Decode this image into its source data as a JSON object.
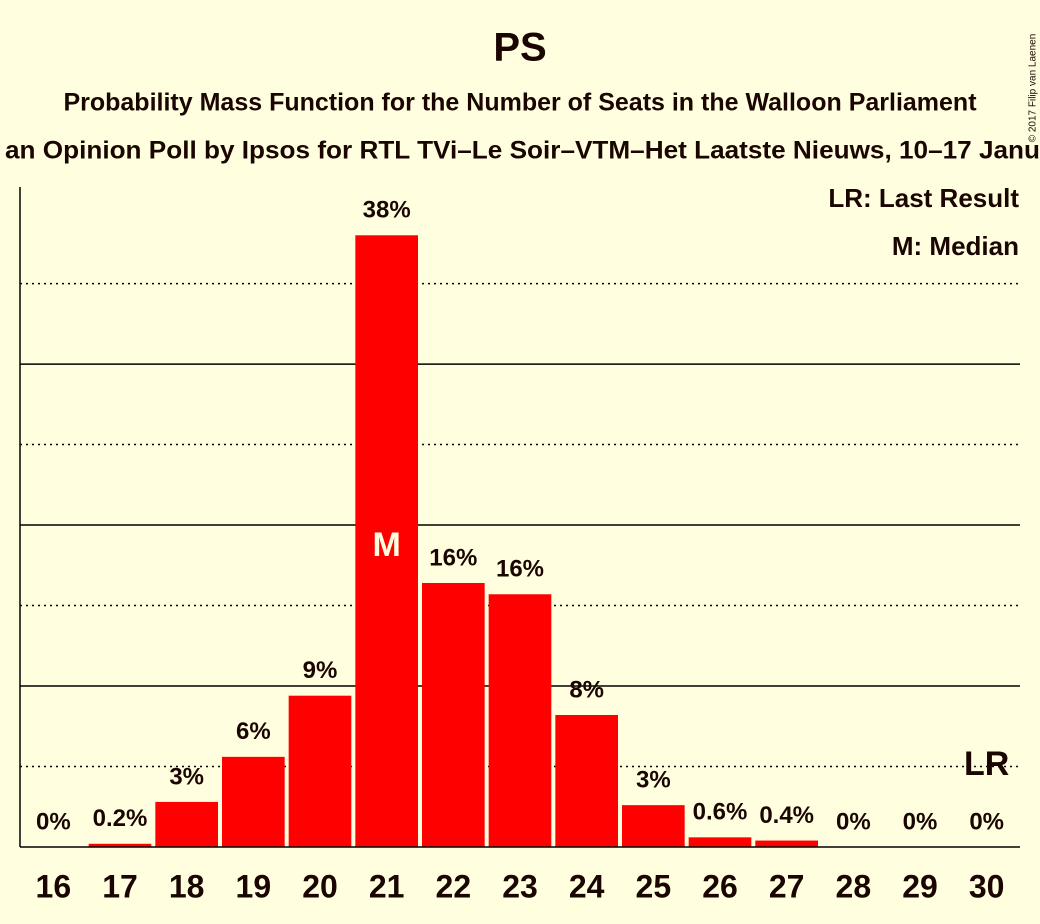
{
  "chart_data": {
    "type": "bar",
    "title": "PS",
    "subtitle": "Probability Mass Function for the Number of Seats in the Walloon Parliament",
    "subtitle2": "an Opinion Poll by Ipsos for RTL TVi–Le Soir–VTM–Het Laatste Nieuws, 10–17 Janu",
    "copyright": "© 2017 Filip van Laenen",
    "legend": [
      "LR: Last Result",
      "M: Median"
    ],
    "categories": [
      "16",
      "17",
      "18",
      "19",
      "20",
      "21",
      "22",
      "23",
      "24",
      "25",
      "26",
      "27",
      "28",
      "29",
      "30"
    ],
    "values": [
      0,
      0.2,
      2.8,
      5.6,
      9.4,
      38,
      16.4,
      15.7,
      8.2,
      2.6,
      0.6,
      0.4,
      0,
      0,
      0
    ],
    "value_labels": [
      "0%",
      "0.2%",
      "3%",
      "6%",
      "9%",
      "38%",
      "16%",
      "16%",
      "8%",
      "3%",
      "0.6%",
      "0.4%",
      "0%",
      "0%",
      "0%"
    ],
    "color": "#ff0000",
    "annotations": [
      {
        "text": "M",
        "category": "21"
      },
      {
        "text": "LR",
        "category": "30"
      }
    ],
    "ylim": [
      0,
      41
    ],
    "yticks": [
      5,
      10,
      15,
      20,
      25,
      30,
      35
    ],
    "grid": true
  }
}
